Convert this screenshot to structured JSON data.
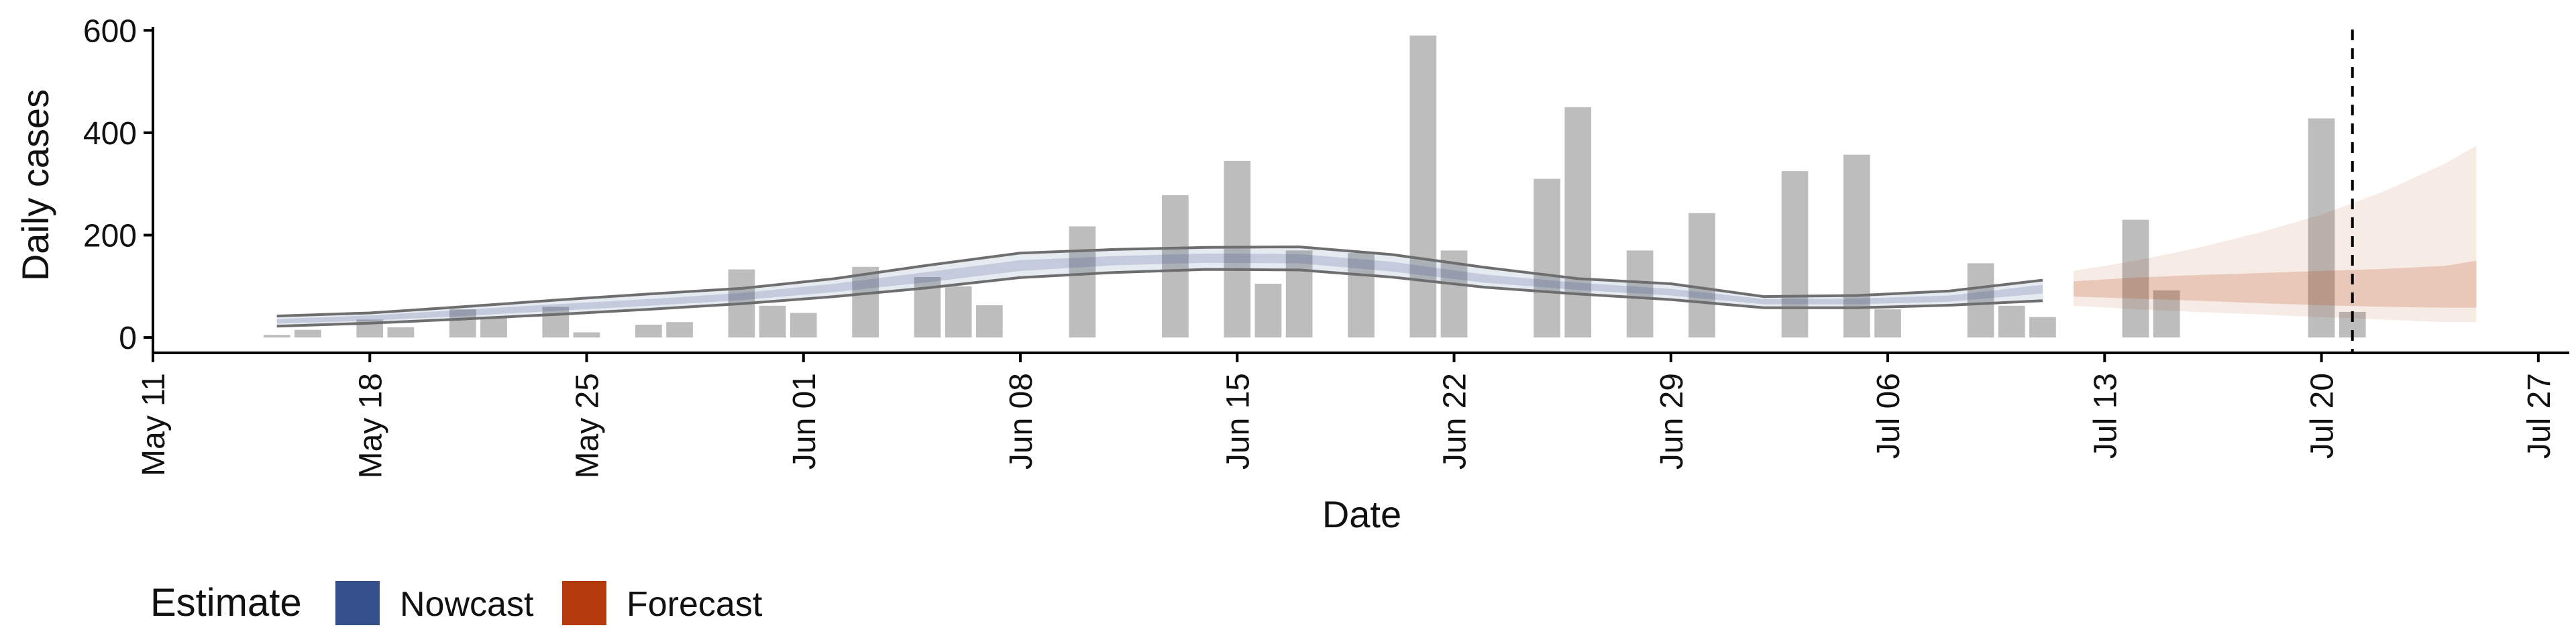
{
  "colors": {
    "bars": "#BDBDBD",
    "nowcast": "#35508A",
    "forecast": "#B53A0C",
    "outline": "#6E6E6E",
    "axis": "#000000"
  },
  "chart_data": {
    "type": "bar",
    "title": "",
    "xlabel": "Date",
    "ylabel": "Daily cases",
    "xlim": [
      "2020-05-11",
      "2020-07-28"
    ],
    "ylim": [
      -30,
      620
    ],
    "x_ticks": [
      "2020-05-11",
      "2020-05-18",
      "2020-05-25",
      "2020-06-01",
      "2020-06-08",
      "2020-06-15",
      "2020-06-22",
      "2020-06-29",
      "2020-07-06",
      "2020-07-13",
      "2020-07-20",
      "2020-07-27"
    ],
    "x_tick_labels": [
      "May 11",
      "May 18",
      "May 25",
      "Jun 01",
      "Jun 08",
      "Jun 15",
      "Jun 22",
      "Jun 29",
      "Jul 06",
      "Jul 13",
      "Jul 20",
      "Jul 27"
    ],
    "y_ticks": [
      0,
      200,
      400,
      600
    ],
    "y_tick_labels": [
      "0",
      "200",
      "400",
      "600"
    ],
    "reference_line_date": "2020-07-21",
    "grid": false,
    "bars": [
      {
        "date": "2020-05-15",
        "value": 5
      },
      {
        "date": "2020-05-16",
        "value": 15
      },
      {
        "date": "2020-05-18",
        "value": 35
      },
      {
        "date": "2020-05-19",
        "value": 20
      },
      {
        "date": "2020-05-21",
        "value": 55
      },
      {
        "date": "2020-05-22",
        "value": 40
      },
      {
        "date": "2020-05-24",
        "value": 60
      },
      {
        "date": "2020-05-25",
        "value": 10
      },
      {
        "date": "2020-05-27",
        "value": 25
      },
      {
        "date": "2020-05-28",
        "value": 30
      },
      {
        "date": "2020-05-30",
        "value": 133
      },
      {
        "date": "2020-05-31",
        "value": 62
      },
      {
        "date": "2020-06-01",
        "value": 48
      },
      {
        "date": "2020-06-03",
        "value": 138
      },
      {
        "date": "2020-06-05",
        "value": 118
      },
      {
        "date": "2020-06-06",
        "value": 100
      },
      {
        "date": "2020-06-07",
        "value": 63
      },
      {
        "date": "2020-06-10",
        "value": 217
      },
      {
        "date": "2020-06-13",
        "value": 278
      },
      {
        "date": "2020-06-15",
        "value": 345
      },
      {
        "date": "2020-06-16",
        "value": 105
      },
      {
        "date": "2020-06-17",
        "value": 170
      },
      {
        "date": "2020-06-19",
        "value": 165
      },
      {
        "date": "2020-06-21",
        "value": 590
      },
      {
        "date": "2020-06-22",
        "value": 170
      },
      {
        "date": "2020-06-25",
        "value": 310
      },
      {
        "date": "2020-06-26",
        "value": 450
      },
      {
        "date": "2020-06-28",
        "value": 170
      },
      {
        "date": "2020-06-30",
        "value": 243
      },
      {
        "date": "2020-07-03",
        "value": 325
      },
      {
        "date": "2020-07-05",
        "value": 357
      },
      {
        "date": "2020-07-06",
        "value": 55
      },
      {
        "date": "2020-07-09",
        "value": 145
      },
      {
        "date": "2020-07-10",
        "value": 62
      },
      {
        "date": "2020-07-11",
        "value": 40
      },
      {
        "date": "2020-07-14",
        "value": 230
      },
      {
        "date": "2020-07-15",
        "value": 92
      },
      {
        "date": "2020-07-20",
        "value": 428
      },
      {
        "date": "2020-07-21",
        "value": 50
      }
    ],
    "series": [
      {
        "name": "Nowcast",
        "dates": [
          "2020-05-15",
          "2020-05-18",
          "2020-05-21",
          "2020-05-24",
          "2020-05-27",
          "2020-05-30",
          "2020-06-02",
          "2020-06-05",
          "2020-06-08",
          "2020-06-11",
          "2020-06-14",
          "2020-06-17",
          "2020-06-20",
          "2020-06-23",
          "2020-06-26",
          "2020-06-29",
          "2020-07-02",
          "2020-07-05",
          "2020-07-08",
          "2020-07-11"
        ],
        "median": [
          31,
          38,
          48,
          58,
          68,
          80,
          97,
          118,
          140,
          150,
          155,
          154,
          138,
          115,
          100,
          88,
          70,
          70,
          76,
          95
        ],
        "lower90": [
          22,
          28,
          36,
          45,
          55,
          66,
          80,
          97,
          117,
          127,
          133,
          132,
          118,
          98,
          85,
          74,
          58,
          58,
          63,
          72
        ],
        "upper90": [
          42,
          48,
          60,
          73,
          85,
          96,
          115,
          141,
          165,
          172,
          176,
          177,
          162,
          137,
          115,
          105,
          80,
          82,
          91,
          112
        ],
        "lower50": [
          27,
          33,
          42,
          52,
          62,
          73,
          89,
          108,
          130,
          141,
          146,
          145,
          129,
          107,
          93,
          82,
          65,
          65,
          70,
          86
        ],
        "upper50": [
          36,
          43,
          54,
          65,
          75,
          87,
          105,
          128,
          151,
          159,
          164,
          163,
          148,
          123,
          107,
          95,
          75,
          76,
          82,
          103
        ]
      },
      {
        "name": "Forecast",
        "dates": [
          "2020-07-12",
          "2020-07-14",
          "2020-07-16",
          "2020-07-18",
          "2020-07-20",
          "2020-07-22",
          "2020-07-24",
          "2020-07-25"
        ],
        "median": [
          95,
          97,
          98,
          100,
          102,
          103,
          104,
          105
        ],
        "lower90": [
          62,
          55,
          50,
          45,
          40,
          35,
          30,
          30
        ],
        "upper90": [
          130,
          150,
          175,
          205,
          240,
          285,
          340,
          375
        ],
        "lower50": [
          80,
          76,
          72,
          67,
          63,
          60,
          58,
          58
        ],
        "upper50": [
          110,
          117,
          122,
          126,
          130,
          134,
          140,
          150
        ]
      }
    ],
    "legend": {
      "title": "Estimate",
      "entries": [
        "Nowcast",
        "Forecast"
      ],
      "placement": "bottom-left"
    }
  }
}
